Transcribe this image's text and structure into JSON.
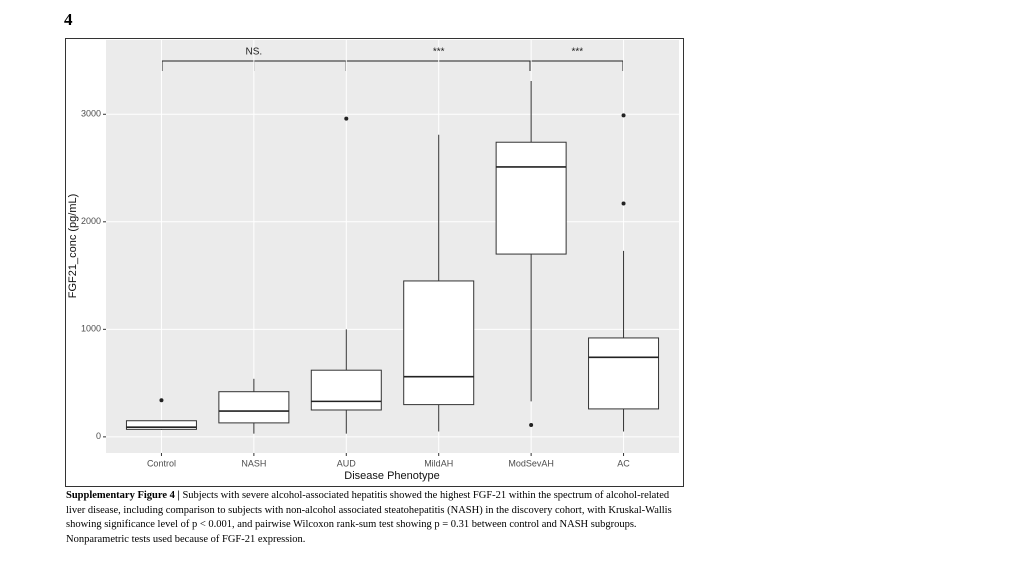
{
  "page_number": "4",
  "chart_data": {
    "type": "box",
    "x_label": "Disease Phenotype",
    "y_label": "FGF21_conc (pg/mL)",
    "categories": [
      "Control",
      "NASH",
      "AUD",
      "MildAH",
      "ModSevAH",
      "AC"
    ],
    "low": [
      65,
      30,
      30,
      50,
      330,
      50
    ],
    "q1": [
      70,
      130,
      250,
      300,
      1700,
      260
    ],
    "median": [
      90,
      240,
      330,
      560,
      2510,
      740
    ],
    "q3": [
      150,
      420,
      620,
      1450,
      2740,
      920
    ],
    "high": [
      150,
      540,
      1000,
      2810,
      3310,
      1730
    ],
    "outliers": [
      [
        340
      ],
      [],
      [
        2960
      ],
      [],
      [
        110
      ],
      [
        2170,
        2990
      ]
    ],
    "ylim": [
      -150,
      3700
    ],
    "yticks": [
      0,
      1000,
      2000,
      3000
    ],
    "grid": true,
    "annotations": [
      "NS.",
      "***",
      "***"
    ]
  },
  "caption": {
    "label": "Supplementary Figure 4 |",
    "text": "Subjects with severe alcohol-associated hepatitis showed the highest FGF-21 within the spectrum of alcohol-related liver disease, including comparison to subjects with non-alcohol associated steatohepatitis (NASH) in the discovery cohort, with Kruskal-Wallis showing significance level of p < 0.001, and pairwise Wilcoxon rank-sum test showing p = 0.31 between control and NASH subgroups. Nonparametric tests used because of FGF-21 expression."
  }
}
